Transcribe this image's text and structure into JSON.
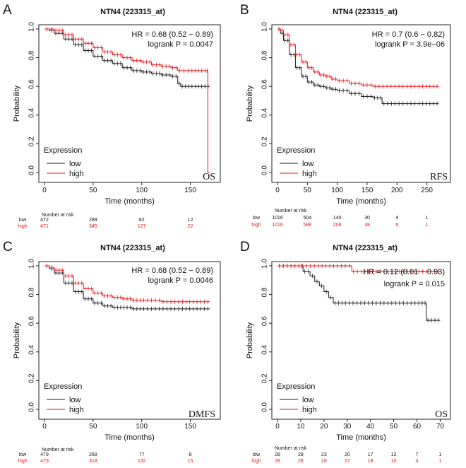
{
  "figure": {
    "axis_labels": {
      "y": "Probability",
      "x": "Time (months)"
    },
    "legend": {
      "title": "Expression",
      "low": "low",
      "high": "high"
    },
    "risk_header": "Number at risk",
    "colors": {
      "low": "#1a1a1a",
      "high": "#e8141b"
    }
  },
  "chart_data": [
    {
      "panel": "A",
      "type": "line",
      "title": "NTN4 (223315_at)",
      "hr_text": "HR = 0.68 (0.52 − 0.89)",
      "p_text": "logrank P = 0.0047",
      "endpoint": "OS",
      "xlabel": "Time (months)",
      "ylabel": "Probability",
      "xlim": [
        0,
        175
      ],
      "ylim": [
        0,
        1
      ],
      "xticks": [
        0,
        50,
        100,
        150
      ],
      "yticks": [
        0.0,
        0.2,
        0.4,
        0.6,
        0.8,
        1.0
      ],
      "series": [
        {
          "name": "low",
          "x": [
            0,
            5,
            10,
            20,
            30,
            40,
            50,
            60,
            70,
            80,
            90,
            100,
            110,
            120,
            130,
            137,
            140,
            150,
            160,
            170
          ],
          "y": [
            1.0,
            0.99,
            0.97,
            0.93,
            0.89,
            0.85,
            0.81,
            0.78,
            0.76,
            0.73,
            0.71,
            0.7,
            0.69,
            0.68,
            0.67,
            0.62,
            0.6,
            0.6,
            0.6,
            0.6
          ]
        },
        {
          "name": "high",
          "x": [
            0,
            5,
            10,
            20,
            30,
            40,
            50,
            60,
            70,
            80,
            90,
            100,
            110,
            120,
            130,
            137,
            150,
            160,
            167,
            168,
            170
          ],
          "y": [
            1.0,
            1.0,
            0.99,
            0.96,
            0.93,
            0.9,
            0.87,
            0.84,
            0.82,
            0.8,
            0.78,
            0.77,
            0.75,
            0.74,
            0.73,
            0.71,
            0.71,
            0.71,
            0.71,
            0.0,
            0.0
          ]
        }
      ],
      "risk_times": [
        0,
        50,
        100,
        150
      ],
      "risk_low": [
        "472",
        "289",
        "82",
        "12"
      ],
      "risk_high": [
        "471",
        "345",
        "127",
        "22"
      ]
    },
    {
      "panel": "B",
      "type": "line",
      "title": "NTN4 (223315_at)",
      "hr_text": "HR = 0.7 (0.6 − 0.82)",
      "p_text": "logrank P = 3.9e−06",
      "endpoint": "RFS",
      "xlabel": "Time (months)",
      "ylabel": "Probability",
      "xlim": [
        0,
        280
      ],
      "ylim": [
        0,
        1
      ],
      "xticks": [
        0,
        50,
        100,
        150,
        200,
        250
      ],
      "yticks": [
        0.0,
        0.2,
        0.4,
        0.6,
        0.8,
        1.0
      ],
      "series": [
        {
          "name": "low",
          "x": [
            0,
            5,
            10,
            20,
            30,
            40,
            50,
            60,
            70,
            80,
            90,
            100,
            120,
            140,
            160,
            170,
            175,
            200,
            240,
            270
          ],
          "y": [
            1.0,
            0.97,
            0.92,
            0.82,
            0.73,
            0.67,
            0.63,
            0.61,
            0.6,
            0.59,
            0.58,
            0.57,
            0.55,
            0.53,
            0.52,
            0.52,
            0.48,
            0.48,
            0.48,
            0.48
          ]
        },
        {
          "name": "high",
          "x": [
            0,
            5,
            10,
            20,
            30,
            40,
            50,
            60,
            70,
            80,
            90,
            100,
            120,
            140,
            160,
            180,
            200,
            240,
            270
          ],
          "y": [
            1.0,
            0.99,
            0.96,
            0.89,
            0.82,
            0.77,
            0.73,
            0.7,
            0.68,
            0.67,
            0.65,
            0.64,
            0.62,
            0.61,
            0.6,
            0.6,
            0.6,
            0.6,
            0.6
          ]
        }
      ],
      "risk_times": [
        0,
        50,
        100,
        150,
        200,
        250
      ],
      "risk_low": [
        "1016",
        "504",
        "140",
        "30",
        "4",
        "1"
      ],
      "risk_high": [
        "1016",
        "588",
        "206",
        "38",
        "6",
        "1"
      ]
    },
    {
      "panel": "C",
      "type": "line",
      "title": "NTN4 (223315_at)",
      "hr_text": "HR = 0.68 (0.52 − 0.89)",
      "p_text": "logrank P = 0.0046",
      "endpoint": "DMFS",
      "xlabel": "Time (months)",
      "ylabel": "Probability",
      "xlim": [
        0,
        175
      ],
      "ylim": [
        0,
        1
      ],
      "xticks": [
        0,
        50,
        100,
        150
      ],
      "yticks": [
        0.0,
        0.2,
        0.4,
        0.6,
        0.8,
        1.0
      ],
      "series": [
        {
          "name": "low",
          "x": [
            0,
            5,
            10,
            20,
            30,
            40,
            50,
            60,
            70,
            80,
            90,
            100,
            120,
            140,
            170
          ],
          "y": [
            1.0,
            0.98,
            0.95,
            0.88,
            0.82,
            0.77,
            0.74,
            0.72,
            0.71,
            0.71,
            0.7,
            0.7,
            0.7,
            0.7,
            0.7
          ]
        },
        {
          "name": "high",
          "x": [
            0,
            5,
            10,
            20,
            30,
            40,
            50,
            60,
            70,
            80,
            90,
            100,
            120,
            140,
            170
          ],
          "y": [
            1.0,
            0.99,
            0.97,
            0.93,
            0.88,
            0.84,
            0.81,
            0.79,
            0.78,
            0.77,
            0.76,
            0.76,
            0.75,
            0.75,
            0.75
          ]
        }
      ],
      "risk_times": [
        0,
        50,
        100,
        150
      ],
      "risk_low": [
        "479",
        "268",
        "77",
        "8"
      ],
      "risk_high": [
        "479",
        "318",
        "132",
        "15"
      ]
    },
    {
      "panel": "D",
      "type": "line",
      "title": "NTN4 (223315_at)",
      "hr_text": "HR = 0.12 (0.01 − 0.93)",
      "p_text": "logrank P = 0.015",
      "endpoint": "OS",
      "xlabel": "Time (months)",
      "ylabel": "Probability",
      "xlim": [
        0,
        72
      ],
      "ylim": [
        0,
        1
      ],
      "xticks": [
        0,
        10,
        20,
        30,
        40,
        50,
        60,
        70
      ],
      "yticks": [
        0.0,
        0.2,
        0.4,
        0.6,
        0.8,
        1.0
      ],
      "series": [
        {
          "name": "low",
          "x": [
            0,
            10,
            11,
            14,
            16,
            18,
            20,
            22,
            24,
            30,
            40,
            50,
            60,
            63,
            64,
            70
          ],
          "y": [
            1.0,
            1.0,
            0.96,
            0.93,
            0.89,
            0.86,
            0.82,
            0.78,
            0.74,
            0.74,
            0.74,
            0.74,
            0.74,
            0.74,
            0.62,
            0.62
          ]
        },
        {
          "name": "high",
          "x": [
            0,
            10,
            20,
            30,
            32,
            40,
            50,
            60,
            70
          ],
          "y": [
            1.0,
            1.0,
            1.0,
            1.0,
            0.96,
            0.96,
            0.96,
            0.96,
            0.96
          ]
        }
      ],
      "risk_times": [
        0,
        10,
        20,
        30,
        40,
        50,
        60,
        70
      ],
      "risk_low": [
        "28",
        "28",
        "23",
        "20",
        "17",
        "12",
        "7",
        "1"
      ],
      "risk_high": [
        "28",
        "28",
        "28",
        "27",
        "18",
        "10",
        "4",
        "1"
      ]
    }
  ]
}
